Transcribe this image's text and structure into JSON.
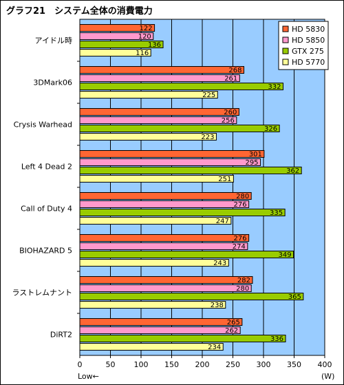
{
  "chart_data": {
    "type": "bar",
    "orientation": "horizontal",
    "title": "グラフ21　システム全体の消費電力",
    "categories": [
      "アイドル時",
      "3DMark06",
      "Crysis Warhead",
      "Left 4 Dead 2",
      "Call of Duty 4",
      "BIOHAZARD 5",
      "ラストレムナント",
      "DiRT2"
    ],
    "series": [
      {
        "name": "HD 5830",
        "color": "#ff6633",
        "values": [
          122,
          268,
          260,
          301,
          280,
          276,
          282,
          265
        ]
      },
      {
        "name": "HD 5850",
        "color": "#ff99cc",
        "values": [
          120,
          261,
          256,
          295,
          276,
          274,
          280,
          262
        ]
      },
      {
        "name": "GTX 275",
        "color": "#99cc00",
        "values": [
          136,
          332,
          326,
          362,
          335,
          349,
          365,
          336
        ]
      },
      {
        "name": "HD 5770",
        "color": "#ffff99",
        "values": [
          116,
          225,
          223,
          251,
          247,
          243,
          238,
          234
        ]
      }
    ],
    "xlim": [
      0,
      400
    ],
    "xticks": [
      0,
      50,
      100,
      150,
      200,
      250,
      300,
      350,
      400
    ],
    "xunit": "(W)",
    "direction_note": "Low←",
    "grid": true,
    "legend": "top-right",
    "plot_background": "#99ccff"
  }
}
